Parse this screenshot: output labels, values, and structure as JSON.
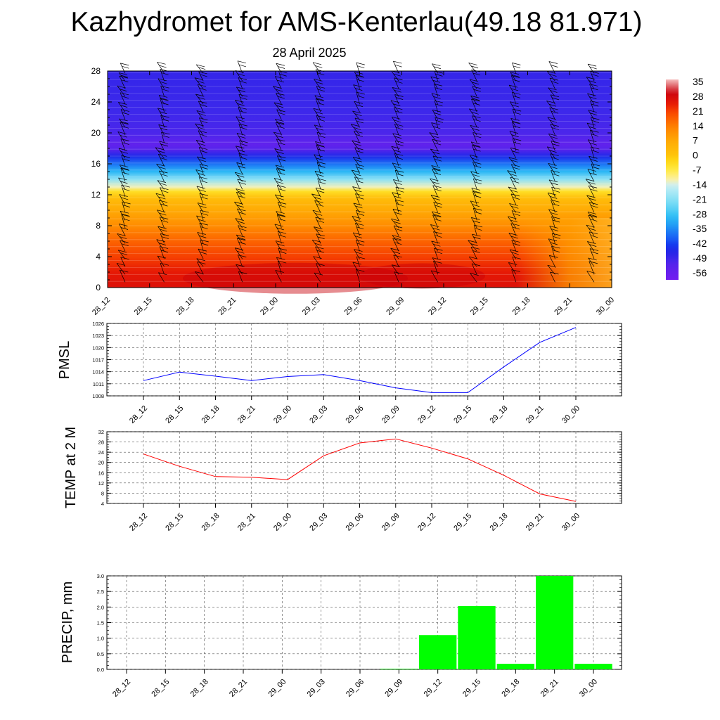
{
  "header": {
    "title": "Kazhydromet for AMS-Kenterlau(49.18 81.971)",
    "date": "28 April 2025"
  },
  "chart_data": [
    {
      "type": "heatmap",
      "title": "",
      "time_labels": [
        "28_12",
        "28_15",
        "28_18",
        "28_21",
        "29_00",
        "29_03",
        "29_06",
        "29_09",
        "29_12",
        "29_15",
        "29_18",
        "29_21",
        "30_00"
      ],
      "yticks": [
        0,
        4,
        8,
        12,
        16,
        20,
        24,
        28
      ],
      "ylim": [
        0,
        28
      ],
      "colorbar_ticks": [
        35,
        28,
        21,
        14,
        7,
        0,
        -7,
        -14,
        -21,
        -28,
        -35,
        -42,
        -49,
        -56
      ],
      "colorbar_range": [
        -63,
        38
      ],
      "temperature_profile_by_height": [
        {
          "h": 0,
          "t": 28
        },
        {
          "h": 2,
          "t": 26
        },
        {
          "h": 4,
          "t": 22
        },
        {
          "h": 6,
          "t": 18
        },
        {
          "h": 8,
          "t": 12
        },
        {
          "h": 10,
          "t": 7
        },
        {
          "h": 11.5,
          "t": 2
        },
        {
          "h": 12.5,
          "t": -5
        },
        {
          "h": 13,
          "t": -13
        },
        {
          "h": 14,
          "t": -22
        },
        {
          "h": 15,
          "t": -32
        },
        {
          "h": 16,
          "t": -40
        },
        {
          "h": 17,
          "t": -48
        },
        {
          "h": 17.8,
          "t": -55
        },
        {
          "h": 18.5,
          "t": -58
        },
        {
          "h": 20,
          "t": -54
        },
        {
          "h": 23,
          "t": -52
        },
        {
          "h": 28,
          "t": -51
        }
      ],
      "wind_barbs": true
    },
    {
      "type": "line",
      "ylabel": "PMSL",
      "x": [
        "28_12",
        "28_15",
        "28_18",
        "28_21",
        "29_00",
        "29_03",
        "29_06",
        "29_09",
        "29_12",
        "29_15",
        "29_18",
        "29_21",
        "30_00"
      ],
      "yticks": [
        1008,
        1011,
        1014,
        1017,
        1020,
        1023,
        1026
      ],
      "ylim": [
        1008,
        1026
      ],
      "series": [
        {
          "values": [
            1011.8,
            1013.9,
            1012.9,
            1011.8,
            1012.8,
            1013.3,
            1011.8,
            1010.0,
            1008.8,
            1008.8,
            1015.2,
            1021.3,
            1025.0
          ],
          "color": "#0000ff"
        }
      ]
    },
    {
      "type": "line",
      "ylabel": "TEMP at 2 M",
      "x": [
        "28_12",
        "28_15",
        "28_18",
        "28_21",
        "29_00",
        "29_03",
        "29_06",
        "29_09",
        "29_12",
        "29_15",
        "29_18",
        "29_21",
        "30_00"
      ],
      "yticks": [
        4,
        8,
        12,
        16,
        20,
        24,
        28,
        32
      ],
      "ylim": [
        4,
        32
      ],
      "series": [
        {
          "values": [
            23.3,
            18.5,
            14.5,
            14.2,
            13.3,
            22.6,
            27.6,
            29.2,
            25.6,
            21.4,
            15.0,
            7.7,
            4.8
          ],
          "color": "#ff0000"
        }
      ]
    },
    {
      "type": "bar",
      "ylabel": "PRECIP, mm",
      "categories": [
        "28_12",
        "28_15",
        "28_18",
        "28_21",
        "29_00",
        "29_03",
        "29_06",
        "29_09",
        "29_12",
        "29_15",
        "29_18",
        "29_21",
        "30_00"
      ],
      "yticks": [
        "0.0",
        "0.5",
        "1.0",
        "1.5",
        "2.0",
        "2.5",
        "3.0"
      ],
      "ylim": [
        0,
        3
      ],
      "values": [
        0,
        0,
        0,
        0,
        0,
        0,
        0,
        0.02,
        1.1,
        2.03,
        0.18,
        3.0,
        0.18
      ],
      "color": "#00ff00"
    }
  ]
}
